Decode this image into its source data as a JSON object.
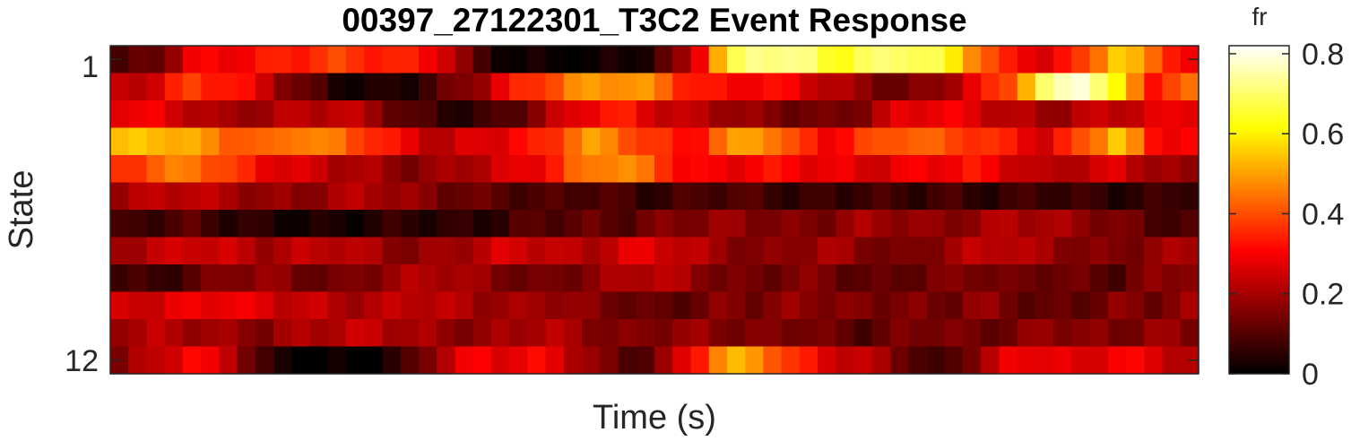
{
  "chart_data": {
    "type": "heatmap",
    "title": "00397_27122301_T3C2 Event Response",
    "xlabel": "Time (s)",
    "ylabel": "State",
    "y_tick_labels": [
      "1",
      "12"
    ],
    "x_tick_labels": [],
    "colorbar": {
      "title": "fr",
      "colormap": "hot",
      "range": [
        0,
        0.82
      ],
      "ticks": [
        0,
        0.2,
        0.4,
        0.6,
        0.8
      ],
      "tick_labels": [
        "0",
        "0.2",
        "0.4",
        "0.6",
        "0.8"
      ]
    },
    "rows": 12,
    "columns": 60,
    "row_keyframes": [
      [
        0.08,
        0.12,
        0.28,
        0.3,
        0.32,
        0.35,
        0.38,
        0.36,
        0.33,
        0.3,
        0.08,
        0.02,
        0.01,
        0.0,
        0.02,
        0.06,
        0.2,
        0.62,
        0.75,
        0.72,
        0.64,
        0.68,
        0.72,
        0.65,
        0.48,
        0.3,
        0.28,
        0.36,
        0.58,
        0.42,
        0.3
      ],
      [
        0.22,
        0.26,
        0.38,
        0.34,
        0.26,
        0.12,
        0.05,
        0.02,
        0.04,
        0.1,
        0.18,
        0.32,
        0.4,
        0.48,
        0.5,
        0.46,
        0.34,
        0.3,
        0.32,
        0.28,
        0.22,
        0.16,
        0.12,
        0.18,
        0.28,
        0.42,
        0.7,
        0.82,
        0.58,
        0.34,
        0.42
      ],
      [
        0.3,
        0.28,
        0.24,
        0.18,
        0.2,
        0.22,
        0.24,
        0.2,
        0.1,
        0.06,
        0.05,
        0.1,
        0.2,
        0.3,
        0.34,
        0.26,
        0.22,
        0.2,
        0.16,
        0.14,
        0.12,
        0.18,
        0.28,
        0.3,
        0.26,
        0.22,
        0.18,
        0.22,
        0.24,
        0.26,
        0.3
      ],
      [
        0.52,
        0.55,
        0.5,
        0.44,
        0.4,
        0.48,
        0.44,
        0.38,
        0.28,
        0.22,
        0.26,
        0.3,
        0.34,
        0.5,
        0.44,
        0.36,
        0.3,
        0.46,
        0.52,
        0.36,
        0.3,
        0.38,
        0.44,
        0.4,
        0.38,
        0.32,
        0.26,
        0.4,
        0.56,
        0.32,
        0.3
      ],
      [
        0.36,
        0.42,
        0.46,
        0.38,
        0.3,
        0.26,
        0.22,
        0.2,
        0.16,
        0.18,
        0.22,
        0.26,
        0.32,
        0.44,
        0.5,
        0.4,
        0.3,
        0.28,
        0.32,
        0.3,
        0.28,
        0.26,
        0.28,
        0.3,
        0.32,
        0.26,
        0.2,
        0.24,
        0.26,
        0.2,
        0.16
      ],
      [
        0.2,
        0.22,
        0.24,
        0.2,
        0.18,
        0.16,
        0.2,
        0.22,
        0.18,
        0.14,
        0.12,
        0.1,
        0.08,
        0.1,
        0.08,
        0.06,
        0.08,
        0.1,
        0.08,
        0.06,
        0.06,
        0.08,
        0.06,
        0.08,
        0.06,
        0.06,
        0.08,
        0.06,
        0.05,
        0.06,
        0.08
      ],
      [
        0.06,
        0.08,
        0.1,
        0.06,
        0.04,
        0.03,
        0.02,
        0.04,
        0.06,
        0.05,
        0.04,
        0.08,
        0.1,
        0.12,
        0.1,
        0.14,
        0.16,
        0.18,
        0.16,
        0.14,
        0.16,
        0.2,
        0.18,
        0.16,
        0.18,
        0.22,
        0.2,
        0.18,
        0.14,
        0.1,
        0.08
      ],
      [
        0.2,
        0.22,
        0.26,
        0.24,
        0.2,
        0.22,
        0.24,
        0.2,
        0.16,
        0.18,
        0.22,
        0.26,
        0.24,
        0.2,
        0.26,
        0.28,
        0.22,
        0.18,
        0.14,
        0.18,
        0.2,
        0.16,
        0.12,
        0.18,
        0.22,
        0.24,
        0.18,
        0.16,
        0.14,
        0.18,
        0.2
      ],
      [
        0.08,
        0.06,
        0.1,
        0.16,
        0.18,
        0.14,
        0.12,
        0.16,
        0.2,
        0.22,
        0.18,
        0.14,
        0.12,
        0.16,
        0.2,
        0.24,
        0.18,
        0.14,
        0.12,
        0.16,
        0.14,
        0.1,
        0.12,
        0.14,
        0.16,
        0.12,
        0.14,
        0.12,
        0.1,
        0.16,
        0.18
      ],
      [
        0.24,
        0.26,
        0.28,
        0.3,
        0.26,
        0.24,
        0.22,
        0.2,
        0.24,
        0.22,
        0.2,
        0.18,
        0.2,
        0.16,
        0.14,
        0.1,
        0.12,
        0.16,
        0.14,
        0.18,
        0.16,
        0.14,
        0.16,
        0.12,
        0.18,
        0.14,
        0.1,
        0.12,
        0.16,
        0.14,
        0.18
      ],
      [
        0.2,
        0.22,
        0.2,
        0.18,
        0.16,
        0.2,
        0.22,
        0.24,
        0.2,
        0.18,
        0.16,
        0.2,
        0.22,
        0.18,
        0.14,
        0.16,
        0.18,
        0.16,
        0.14,
        0.16,
        0.12,
        0.1,
        0.14,
        0.16,
        0.12,
        0.14,
        0.18,
        0.16,
        0.14,
        0.18,
        0.16
      ],
      [
        0.14,
        0.24,
        0.3,
        0.26,
        0.06,
        0.0,
        0.0,
        0.0,
        0.06,
        0.22,
        0.3,
        0.28,
        0.3,
        0.2,
        0.1,
        0.12,
        0.3,
        0.52,
        0.48,
        0.34,
        0.26,
        0.22,
        0.14,
        0.04,
        0.18,
        0.28,
        0.3,
        0.24,
        0.32,
        0.26,
        0.22
      ]
    ]
  }
}
